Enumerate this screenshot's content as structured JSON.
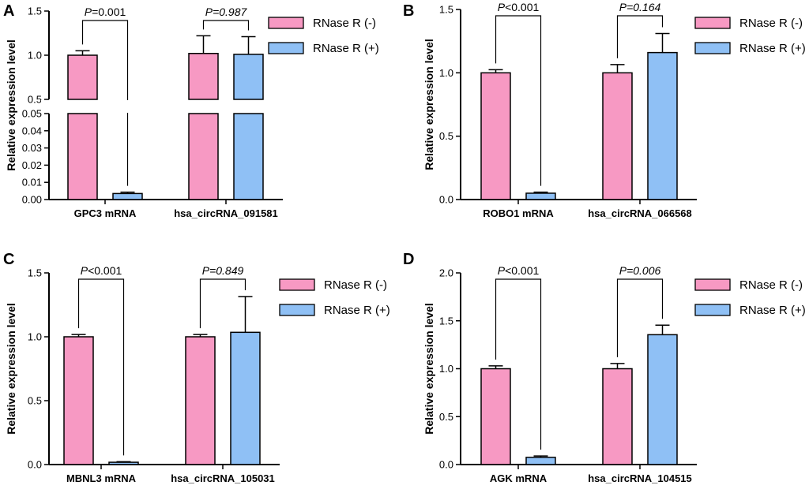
{
  "figure": {
    "ylabel": "Relative expression level",
    "legend": [
      {
        "name": "RNase R (-)",
        "color": "#F799C3"
      },
      {
        "name": "RNase R (+)",
        "color": "#8FC0F5"
      }
    ]
  },
  "chart_data": [
    {
      "panel": "A",
      "type": "bar",
      "broken_axis": true,
      "ylim_lower": [
        0,
        0.05
      ],
      "yticks_lower": [
        "0.00",
        "0.01",
        "0.02",
        "0.03",
        "0.04",
        "0.05"
      ],
      "ylim_upper": [
        0.5,
        1.5
      ],
      "yticks_upper": [
        "0.5",
        "1.0",
        "1.5"
      ],
      "categories": [
        "GPC3 mRNA",
        "hsa_circRNA_091581"
      ],
      "series": [
        {
          "name": "RNase R (-)",
          "values": [
            1.0,
            1.02
          ],
          "errors": [
            0.05,
            0.2
          ]
        },
        {
          "name": "RNase R (+)",
          "values": [
            0.0035,
            1.01
          ],
          "errors": [
            0.0008,
            0.2
          ]
        }
      ],
      "pvalues": [
        {
          "prefix": "P",
          "text": "=0.001",
          "italic": false
        },
        {
          "prefix": "P",
          "text": "=0.987",
          "italic": true
        }
      ]
    },
    {
      "panel": "B",
      "type": "bar",
      "ylim": [
        0,
        1.5
      ],
      "yticks": [
        "0.0",
        "0.5",
        "1.0",
        "1.5"
      ],
      "categories": [
        "ROBO1 mRNA",
        "hsa_circRNA_066568"
      ],
      "series": [
        {
          "name": "RNase R (-)",
          "values": [
            1.0,
            1.0
          ],
          "errors": [
            0.025,
            0.065
          ]
        },
        {
          "name": "RNase R (+)",
          "values": [
            0.05,
            1.16
          ],
          "errors": [
            0.008,
            0.15
          ]
        }
      ],
      "pvalues": [
        {
          "prefix": "P",
          "text": "<0.001",
          "italic": false
        },
        {
          "prefix": "P",
          "text": "=0.164",
          "italic": true
        }
      ]
    },
    {
      "panel": "C",
      "type": "bar",
      "ylim": [
        0,
        1.5
      ],
      "yticks": [
        "0.0",
        "0.5",
        "1.0",
        "1.5"
      ],
      "categories": [
        "MBNL3 mRNA",
        "hsa_circRNA_105031"
      ],
      "series": [
        {
          "name": "RNase R (-)",
          "values": [
            1.0,
            1.0
          ],
          "errors": [
            0.018,
            0.018
          ]
        },
        {
          "name": "RNase R (+)",
          "values": [
            0.018,
            1.035
          ],
          "errors": [
            0.004,
            0.28
          ]
        }
      ],
      "pvalues": [
        {
          "prefix": "P",
          "text": "<0.001",
          "italic": false
        },
        {
          "prefix": "P",
          "text": "=0.849",
          "italic": true
        }
      ]
    },
    {
      "panel": "D",
      "type": "bar",
      "ylim": [
        0,
        2.0
      ],
      "yticks": [
        "0.0",
        "0.5",
        "1.0",
        "1.5",
        "2.0"
      ],
      "categories": [
        "AGK mRNA",
        "hsa_circRNA_104515"
      ],
      "series": [
        {
          "name": "RNase R (-)",
          "values": [
            1.0,
            1.0
          ],
          "errors": [
            0.03,
            0.055
          ]
        },
        {
          "name": "RNase R (+)",
          "values": [
            0.075,
            1.355
          ],
          "errors": [
            0.015,
            0.1
          ]
        }
      ],
      "pvalues": [
        {
          "prefix": "P",
          "text": "<0.001",
          "italic": false
        },
        {
          "prefix": "P",
          "text": "=0.006",
          "italic": true
        }
      ]
    }
  ]
}
